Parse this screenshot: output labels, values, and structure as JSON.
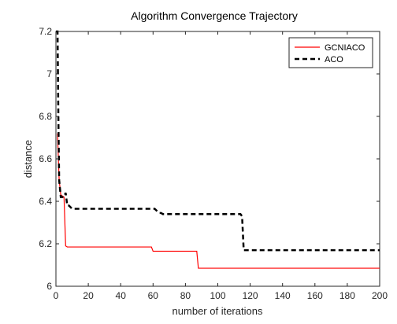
{
  "chart_data": {
    "type": "line",
    "title": "Algorithm Convergence Trajectory",
    "xlabel": "number of iterations",
    "ylabel": "distance",
    "xlim": [
      0,
      200
    ],
    "ylim": [
      6,
      7.2
    ],
    "xticks": [
      0,
      20,
      40,
      60,
      80,
      100,
      120,
      140,
      160,
      180,
      200
    ],
    "yticks": [
      6,
      6.2,
      6.4,
      6.6,
      6.8,
      7,
      7.2
    ],
    "xtick_labels": [
      "0",
      "20",
      "40",
      "60",
      "80",
      "100",
      "120",
      "140",
      "160",
      "180",
      "200"
    ],
    "ytick_labels": [
      "6",
      "6.2",
      "6.4",
      "6.6",
      "6.8",
      "7",
      "7.2"
    ],
    "grid": false,
    "legend_position": "top-right",
    "series": [
      {
        "name": "GCNIACO",
        "color": "#ff0000",
        "style": "solid",
        "x": [
          1,
          1.5,
          2,
          3,
          5,
          6,
          7,
          59,
          60,
          61,
          87,
          88,
          89,
          200
        ],
        "y": [
          6.72,
          6.6,
          6.5,
          6.43,
          6.42,
          6.19,
          6.185,
          6.185,
          6.165,
          6.165,
          6.165,
          6.085,
          6.085,
          6.085
        ]
      },
      {
        "name": "ACO",
        "color": "#000000",
        "style": "dashed",
        "x": [
          0,
          1,
          1.5,
          2,
          3,
          5,
          6,
          7,
          8,
          10,
          59,
          61,
          63,
          64,
          65,
          66,
          100,
          114,
          115,
          116,
          117,
          200
        ],
        "y": [
          7.2,
          7.2,
          6.8,
          6.5,
          6.42,
          6.42,
          6.44,
          6.38,
          6.38,
          6.365,
          6.365,
          6.365,
          6.35,
          6.345,
          6.345,
          6.34,
          6.34,
          6.34,
          6.33,
          6.17,
          6.17,
          6.17
        ]
      }
    ]
  }
}
